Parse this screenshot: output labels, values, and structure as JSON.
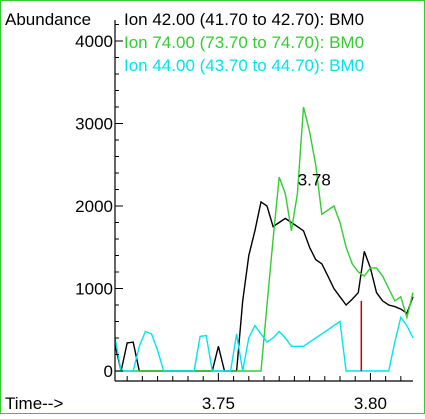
{
  "chart_data": {
    "type": "line",
    "ylabel": "Abundance",
    "xlabel": "Time-->",
    "xlim": [
      3.716,
      3.814
    ],
    "ylim": [
      0,
      4400
    ],
    "x_ticks": [
      3.75,
      3.8
    ],
    "y_ticks": [
      0,
      1000,
      2000,
      3000,
      4000
    ],
    "grid": false,
    "legend_position": "top-right",
    "annotation": {
      "text": "3.78",
      "x": 3.782,
      "y": 2150
    },
    "marker_line": {
      "x": 3.797,
      "y_top": 850,
      "color": "#cc0000"
    },
    "colors": {
      "border": "#33cc33",
      "axis": "#000000"
    },
    "series": [
      {
        "name": "Ion  42.00 (41.70 to 42.70): BM0",
        "color": "#000000",
        "x": [
          3.716,
          3.718,
          3.72,
          3.722,
          3.724,
          3.726,
          3.728,
          3.73,
          3.732,
          3.734,
          3.736,
          3.738,
          3.74,
          3.742,
          3.744,
          3.746,
          3.748,
          3.75,
          3.752,
          3.754,
          3.756,
          3.758,
          3.76,
          3.762,
          3.764,
          3.766,
          3.768,
          3.77,
          3.772,
          3.774,
          3.776,
          3.778,
          3.78,
          3.782,
          3.784,
          3.786,
          3.788,
          3.79,
          3.792,
          3.794,
          3.796,
          3.798,
          3.8,
          3.802,
          3.804,
          3.806,
          3.808,
          3.81,
          3.812,
          3.814
        ],
        "values": [
          320,
          0,
          340,
          350,
          0,
          0,
          0,
          0,
          0,
          0,
          0,
          0,
          0,
          0,
          0,
          0,
          0,
          300,
          0,
          0,
          0,
          850,
          1400,
          1700,
          2050,
          2000,
          1750,
          1800,
          1850,
          1800,
          1750,
          1700,
          1500,
          1350,
          1300,
          1150,
          1000,
          900,
          800,
          870,
          950,
          1450,
          1250,
          950,
          850,
          800,
          780,
          750,
          700,
          900
        ]
      },
      {
        "name": "Ion  74.00 (73.70 to 74.70): BM0",
        "color": "#33cc33",
        "x": [
          3.716,
          3.718,
          3.72,
          3.722,
          3.724,
          3.726,
          3.728,
          3.73,
          3.732,
          3.734,
          3.736,
          3.738,
          3.74,
          3.742,
          3.744,
          3.746,
          3.748,
          3.75,
          3.752,
          3.754,
          3.756,
          3.758,
          3.76,
          3.762,
          3.764,
          3.766,
          3.768,
          3.77,
          3.772,
          3.774,
          3.776,
          3.778,
          3.78,
          3.782,
          3.784,
          3.786,
          3.788,
          3.79,
          3.792,
          3.794,
          3.796,
          3.798,
          3.8,
          3.802,
          3.804,
          3.806,
          3.808,
          3.81,
          3.812,
          3.814
        ],
        "values": [
          0,
          0,
          0,
          0,
          0,
          0,
          0,
          0,
          0,
          0,
          0,
          0,
          0,
          0,
          0,
          0,
          0,
          0,
          0,
          0,
          0,
          0,
          0,
          0,
          0,
          800,
          1600,
          2350,
          2150,
          1700,
          2150,
          3200,
          2900,
          2500,
          1900,
          1950,
          2000,
          1800,
          1500,
          1300,
          1200,
          1150,
          1250,
          1250,
          1150,
          1000,
          850,
          900,
          650,
          950
        ]
      },
      {
        "name": "Ion  44.00 (43.70 to 44.70): BM0",
        "color": "#00e5ee",
        "x": [
          3.716,
          3.718,
          3.72,
          3.722,
          3.724,
          3.726,
          3.728,
          3.73,
          3.732,
          3.734,
          3.736,
          3.738,
          3.74,
          3.742,
          3.744,
          3.746,
          3.748,
          3.75,
          3.752,
          3.754,
          3.756,
          3.758,
          3.76,
          3.762,
          3.764,
          3.766,
          3.768,
          3.77,
          3.772,
          3.774,
          3.776,
          3.778,
          3.78,
          3.782,
          3.784,
          3.786,
          3.788,
          3.79,
          3.792,
          3.794,
          3.796,
          3.798,
          3.8,
          3.802,
          3.804,
          3.806,
          3.808,
          3.81,
          3.812,
          3.814
        ],
        "values": [
          400,
          0,
          0,
          0,
          300,
          480,
          450,
          250,
          0,
          0,
          0,
          0,
          0,
          0,
          420,
          430,
          0,
          0,
          0,
          0,
          450,
          0,
          400,
          550,
          450,
          350,
          400,
          480,
          400,
          300,
          300,
          300,
          350,
          400,
          450,
          500,
          550,
          600,
          0,
          0,
          0,
          0,
          0,
          0,
          0,
          0,
          350,
          650,
          550,
          400
        ]
      }
    ]
  }
}
